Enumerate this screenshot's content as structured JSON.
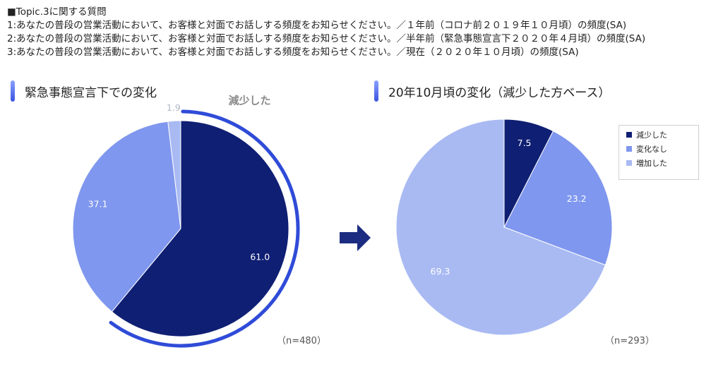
{
  "header": {
    "topic": "■Topic.3に関する質問",
    "q1": "1:あなたの普段の営業活動において、お客様と対面でお話しする頻度をお知らせください。／１年前（コロナ前２０１９年１０月頃）の頻度(SA)",
    "q2": "2:あなたの普段の営業活動において、お客様と対面でお話しする頻度をお知らせください。／半年前（緊急事態宣言下２０２０年４月頃）の頻度(SA)",
    "q3": "3:あなたの普段の営業活動において、お客様と対面でお話しする頻度をお知らせください。／現在（２０２０年１０月頃）の頻度(SA)"
  },
  "colors": {
    "decreased": "#0f1f73",
    "unchanged": "#7f97ee",
    "increased": "#a9baf3",
    "accent": "#2f4bd8",
    "arrow": "#1c2c80"
  },
  "chart_data": [
    {
      "type": "pie",
      "title": "緊急事態宣言下での変化",
      "n_label": "（n=480）",
      "highlight_label": "減少した",
      "slices": [
        {
          "name": "減少した",
          "value": 61.0,
          "label": "61.0",
          "color": "#0f1f73"
        },
        {
          "name": "変化なし",
          "value": 37.1,
          "label": "37.1",
          "color": "#7f97ee"
        },
        {
          "name": "増加した",
          "value": 1.9,
          "label": "1.9",
          "color": "#a9baf3"
        }
      ]
    },
    {
      "type": "pie",
      "title": "20年10月頃の変化（減少した方ベース）",
      "n_label": "（n=293）",
      "slices": [
        {
          "name": "減少した",
          "value": 7.5,
          "label": "7.5",
          "color": "#0f1f73"
        },
        {
          "name": "変化なし",
          "value": 23.2,
          "label": "23.2",
          "color": "#7f97ee"
        },
        {
          "name": "増加した",
          "value": 69.3,
          "label": "69.3",
          "color": "#a9baf3"
        }
      ],
      "legend": [
        "減少した",
        "変化なし",
        "増加した"
      ]
    }
  ]
}
